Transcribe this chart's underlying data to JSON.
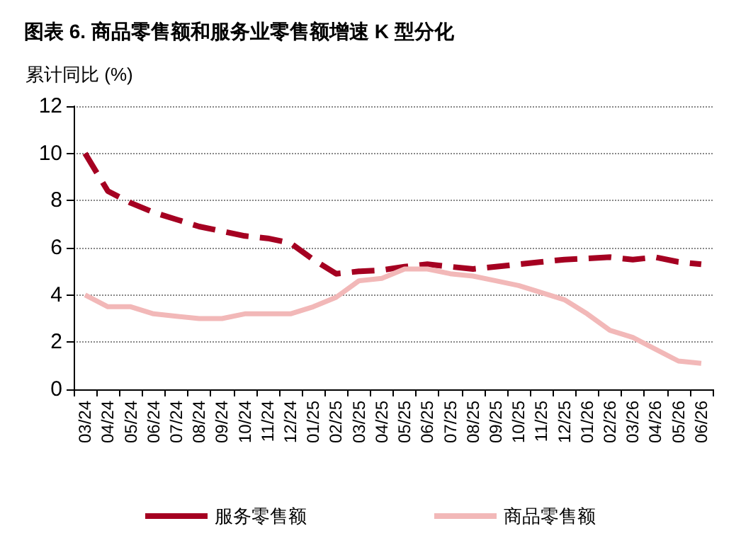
{
  "chart_data": {
    "type": "line",
    "title": "图表 6. 商品零售额和服务业零售额增速 K 型分化",
    "ylabel": "累计同比 (%)",
    "categories": [
      "03/24",
      "04/24",
      "05/24",
      "06/24",
      "07/24",
      "08/24",
      "09/24",
      "10/24",
      "11/24",
      "12/24",
      "01/25",
      "02/25",
      "03/25",
      "04/25",
      "05/25",
      "06/25",
      "07/25",
      "08/25",
      "09/25",
      "10/25",
      "11/25",
      "12/25",
      "01/26",
      "02/26",
      "03/26",
      "04/26",
      "05/26",
      "06/26"
    ],
    "series": [
      {
        "name": "服务零售额",
        "color": "#a50021",
        "line_style": "dashed",
        "values": [
          10,
          8.4,
          7.9,
          7.5,
          7.2,
          6.9,
          6.7,
          6.5,
          6.4,
          6.2,
          5.5,
          4.9,
          5.0,
          5.05,
          5.2,
          5.3,
          5.2,
          5.1,
          5.2,
          5.3,
          5.4,
          5.5,
          5.55,
          5.6,
          5.5,
          5.6,
          5.4,
          5.3
        ]
      },
      {
        "name": "商品零售额",
        "color": "#f2b8b8",
        "line_style": "solid",
        "values": [
          4.0,
          3.5,
          3.5,
          3.2,
          3.1,
          3.0,
          3.0,
          3.2,
          3.2,
          3.2,
          3.5,
          3.9,
          4.6,
          4.7,
          5.1,
          5.1,
          4.9,
          4.8,
          4.6,
          4.4,
          4.1,
          3.8,
          3.2,
          2.5,
          2.2,
          1.7,
          1.2,
          1.1
        ]
      }
    ],
    "ylim": [
      0,
      12
    ],
    "yticks": [
      0,
      2,
      4,
      6,
      8,
      10,
      12
    ],
    "grid": "y",
    "legend": "bottom",
    "marker": "none"
  }
}
